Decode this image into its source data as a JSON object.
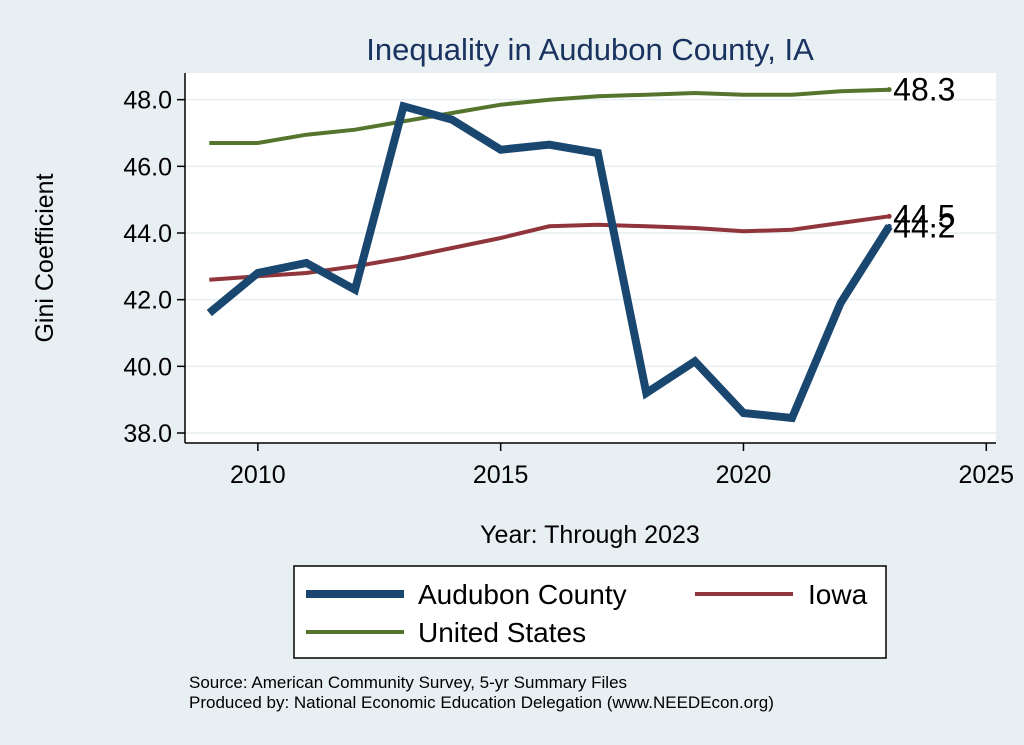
{
  "chart_data": {
    "type": "line",
    "title": "Inequality in Audubon County, IA",
    "xlabel": "Year: Through 2023",
    "ylabel": "Gini Coefficient",
    "xlim": [
      2008.5,
      2025.2
    ],
    "ylim": [
      37.7,
      48.8
    ],
    "xticks": [
      2010,
      2015,
      2020,
      2025
    ],
    "yticks": [
      38.0,
      40.0,
      42.0,
      44.0,
      46.0,
      48.0
    ],
    "x": [
      2009,
      2010,
      2011,
      2012,
      2013,
      2014,
      2015,
      2016,
      2017,
      2018,
      2019,
      2020,
      2021,
      2022,
      2023
    ],
    "series": [
      {
        "name": "Audubon County",
        "color": "#1a476f",
        "values": [
          41.6,
          42.8,
          43.1,
          42.3,
          47.8,
          47.4,
          46.5,
          46.65,
          46.4,
          39.2,
          40.15,
          38.6,
          38.45,
          41.9,
          44.2
        ],
        "end_label": "44.2"
      },
      {
        "name": "Iowa",
        "color": "#90353b",
        "values": [
          42.6,
          42.7,
          42.8,
          43.0,
          43.25,
          43.55,
          43.85,
          44.2,
          44.25,
          44.2,
          44.15,
          44.05,
          44.1,
          44.3,
          44.5
        ],
        "end_label": "44.5"
      },
      {
        "name": "United States",
        "color": "#55752f",
        "values": [
          46.7,
          46.7,
          46.95,
          47.1,
          47.35,
          47.6,
          47.85,
          48.0,
          48.1,
          48.15,
          48.2,
          48.15,
          48.15,
          48.25,
          48.3
        ],
        "end_label": "48.3"
      }
    ],
    "legend": {
      "position": "bottom",
      "items": [
        "Audubon County",
        "Iowa",
        "United States"
      ]
    },
    "notes": [
      "Source: American Community Survey, 5-yr Summary Files",
      "Produced by: National Economic Education Delegation (www.NEEDEcon.org)"
    ]
  }
}
